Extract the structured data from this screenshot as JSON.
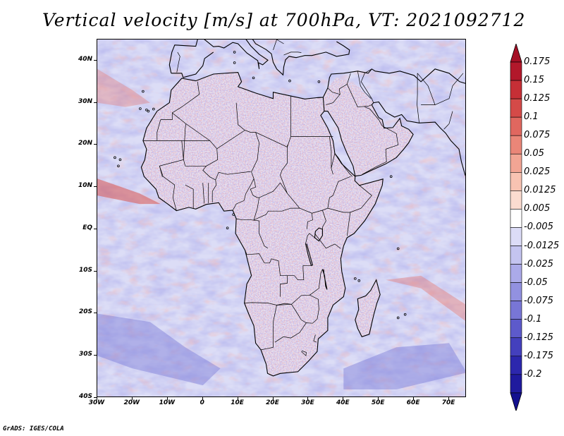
{
  "title": "Vertical velocity [m/s] at 700hPa, VT: 2021092712",
  "credit": "GrADS: IGES/COLA",
  "map": {
    "lat_labels": [
      "40N",
      "30N",
      "20N",
      "10N",
      "EQ",
      "10S",
      "20S",
      "30S",
      "40S"
    ],
    "lon_labels": [
      "30W",
      "20W",
      "10W",
      "0",
      "10E",
      "20E",
      "30E",
      "40E",
      "50E",
      "60E",
      "70E"
    ],
    "lon_range": [
      -30,
      75
    ],
    "lat_range": [
      -40,
      45
    ]
  },
  "colorbar": {
    "labels": [
      "0.175",
      "0.15",
      "0.125",
      "0.1",
      "0.075",
      "0.05",
      "0.025",
      "0.0125",
      "0.005",
      "-0.005",
      "-0.0125",
      "-0.025",
      "-0.05",
      "-0.075",
      "-0.1",
      "-0.125",
      "-0.175",
      "-0.2"
    ],
    "colors": [
      "#b2182b",
      "#c62f36",
      "#d44a48",
      "#e0675f",
      "#ea8678",
      "#f2a594",
      "#f8c3b2",
      "#fbdcd0",
      "#ffffff",
      "#dcdcf7",
      "#c4c4f0",
      "#abaae9",
      "#9291e0",
      "#7876d6",
      "#5d5acb",
      "#4440bd",
      "#2c27ad",
      "#1f1a9e"
    ],
    "top_color": "#a50f25",
    "bottom_color": "#13108f"
  },
  "colors": {
    "ascent": "#c0392b",
    "descent": "#4b48c9",
    "background": "#dcddf6",
    "coast": "#000000"
  }
}
